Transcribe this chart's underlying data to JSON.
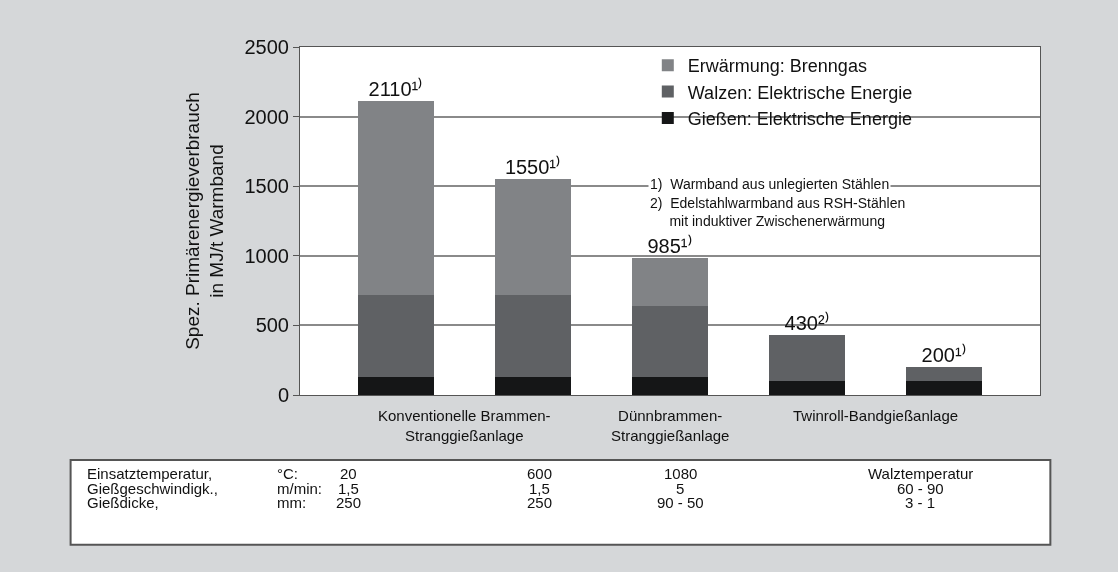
{
  "chart_data": {
    "type": "bar",
    "stacked": true,
    "ylabel": "Spez. Primärenergieverbrauch\nin MJ/t Warmband",
    "categories": [
      null,
      null,
      null,
      null,
      null
    ],
    "series": [
      {
        "name": "Gießen: Elektrische Energie",
        "color": "#151617",
        "values": [
          130,
          130,
          130,
          100,
          100
        ]
      },
      {
        "name": "Walzen: Elektrische Energie",
        "color": "#5f6164",
        "values": [
          590,
          590,
          510,
          330,
          100
        ]
      },
      {
        "name": "Erwärmung: Brenngas",
        "color": "#818386",
        "values": [
          1390,
          830,
          345,
          null,
          null
        ]
      }
    ],
    "totals": [
      "2110¹⁾",
      "1550¹⁾",
      "985¹⁾",
      "430²⁾",
      "200¹⁾"
    ],
    "ylim": [
      0,
      2500
    ],
    "yticks": [
      0,
      500,
      1000,
      1500,
      2000,
      2500
    ],
    "grid": "y",
    "legend": "top right",
    "annotations": [
      "Konventionelle Brammen-\nStranggießanlage",
      "Dünnbrammen-\nStranggießanlage",
      "Twinroll-Bandgießanlage",
      "1)  Warmband aus unlegierten Stählen",
      "2)  Edelstahlwarmband aus RSH-Stählen\n     mit induktiver Zwischenerwärmung",
      "Einsatztemperatur,",
      "°C:",
      "20",
      "600",
      "1080",
      "Walztemperatur",
      "Gießgeschwindigk.,",
      "m/min:",
      "1,5",
      "1,5",
      "5",
      "60 - 90",
      "Gießdicke,",
      "mm:",
      "250",
      "250",
      "90 - 50",
      "3 - 1"
    ]
  }
}
